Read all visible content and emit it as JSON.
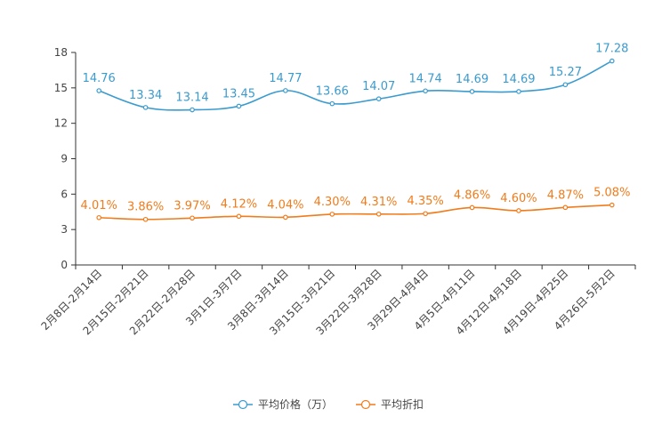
{
  "chart_data": {
    "type": "line",
    "title": "",
    "xlabel": "",
    "ylabel": "",
    "ylim": [
      0,
      18
    ],
    "yticks": [
      0,
      3,
      6,
      9,
      12,
      15,
      18
    ],
    "grid": false,
    "legend_position": "bottom-center",
    "categories": [
      "2月8日-2月14日",
      "2月15日-2月21日",
      "2月22日-2月28日",
      "3月1日-3月7日",
      "3月8日-3月14日",
      "3月15日-3月21日",
      "3月22日-3月28日",
      "3月29日-4月4日",
      "4月5日-4月11日",
      "4月12日-4月18日",
      "4月19日-4月25日",
      "4月26日-5月2日"
    ],
    "series": [
      {
        "name": "平均价格（万）",
        "color": "#3a9bcf",
        "values": [
          14.76,
          13.34,
          13.14,
          13.45,
          14.77,
          13.66,
          14.07,
          14.74,
          14.69,
          14.69,
          15.27,
          17.28
        ],
        "labels": [
          "14.76",
          "13.34",
          "13.14",
          "13.45",
          "14.77",
          "13.66",
          "14.07",
          "14.74",
          "14.69",
          "14.69",
          "15.27",
          "17.28"
        ]
      },
      {
        "name": "平均折扣",
        "color": "#f07c1c",
        "values": [
          4.01,
          3.86,
          3.97,
          4.12,
          4.04,
          4.3,
          4.31,
          4.35,
          4.86,
          4.6,
          4.87,
          5.08
        ],
        "labels": [
          "4.01%",
          "3.86%",
          "3.97%",
          "4.12%",
          "4.04%",
          "4.30%",
          "4.31%",
          "4.35%",
          "4.86%",
          "4.60%",
          "4.87%",
          "5.08%"
        ]
      }
    ]
  }
}
